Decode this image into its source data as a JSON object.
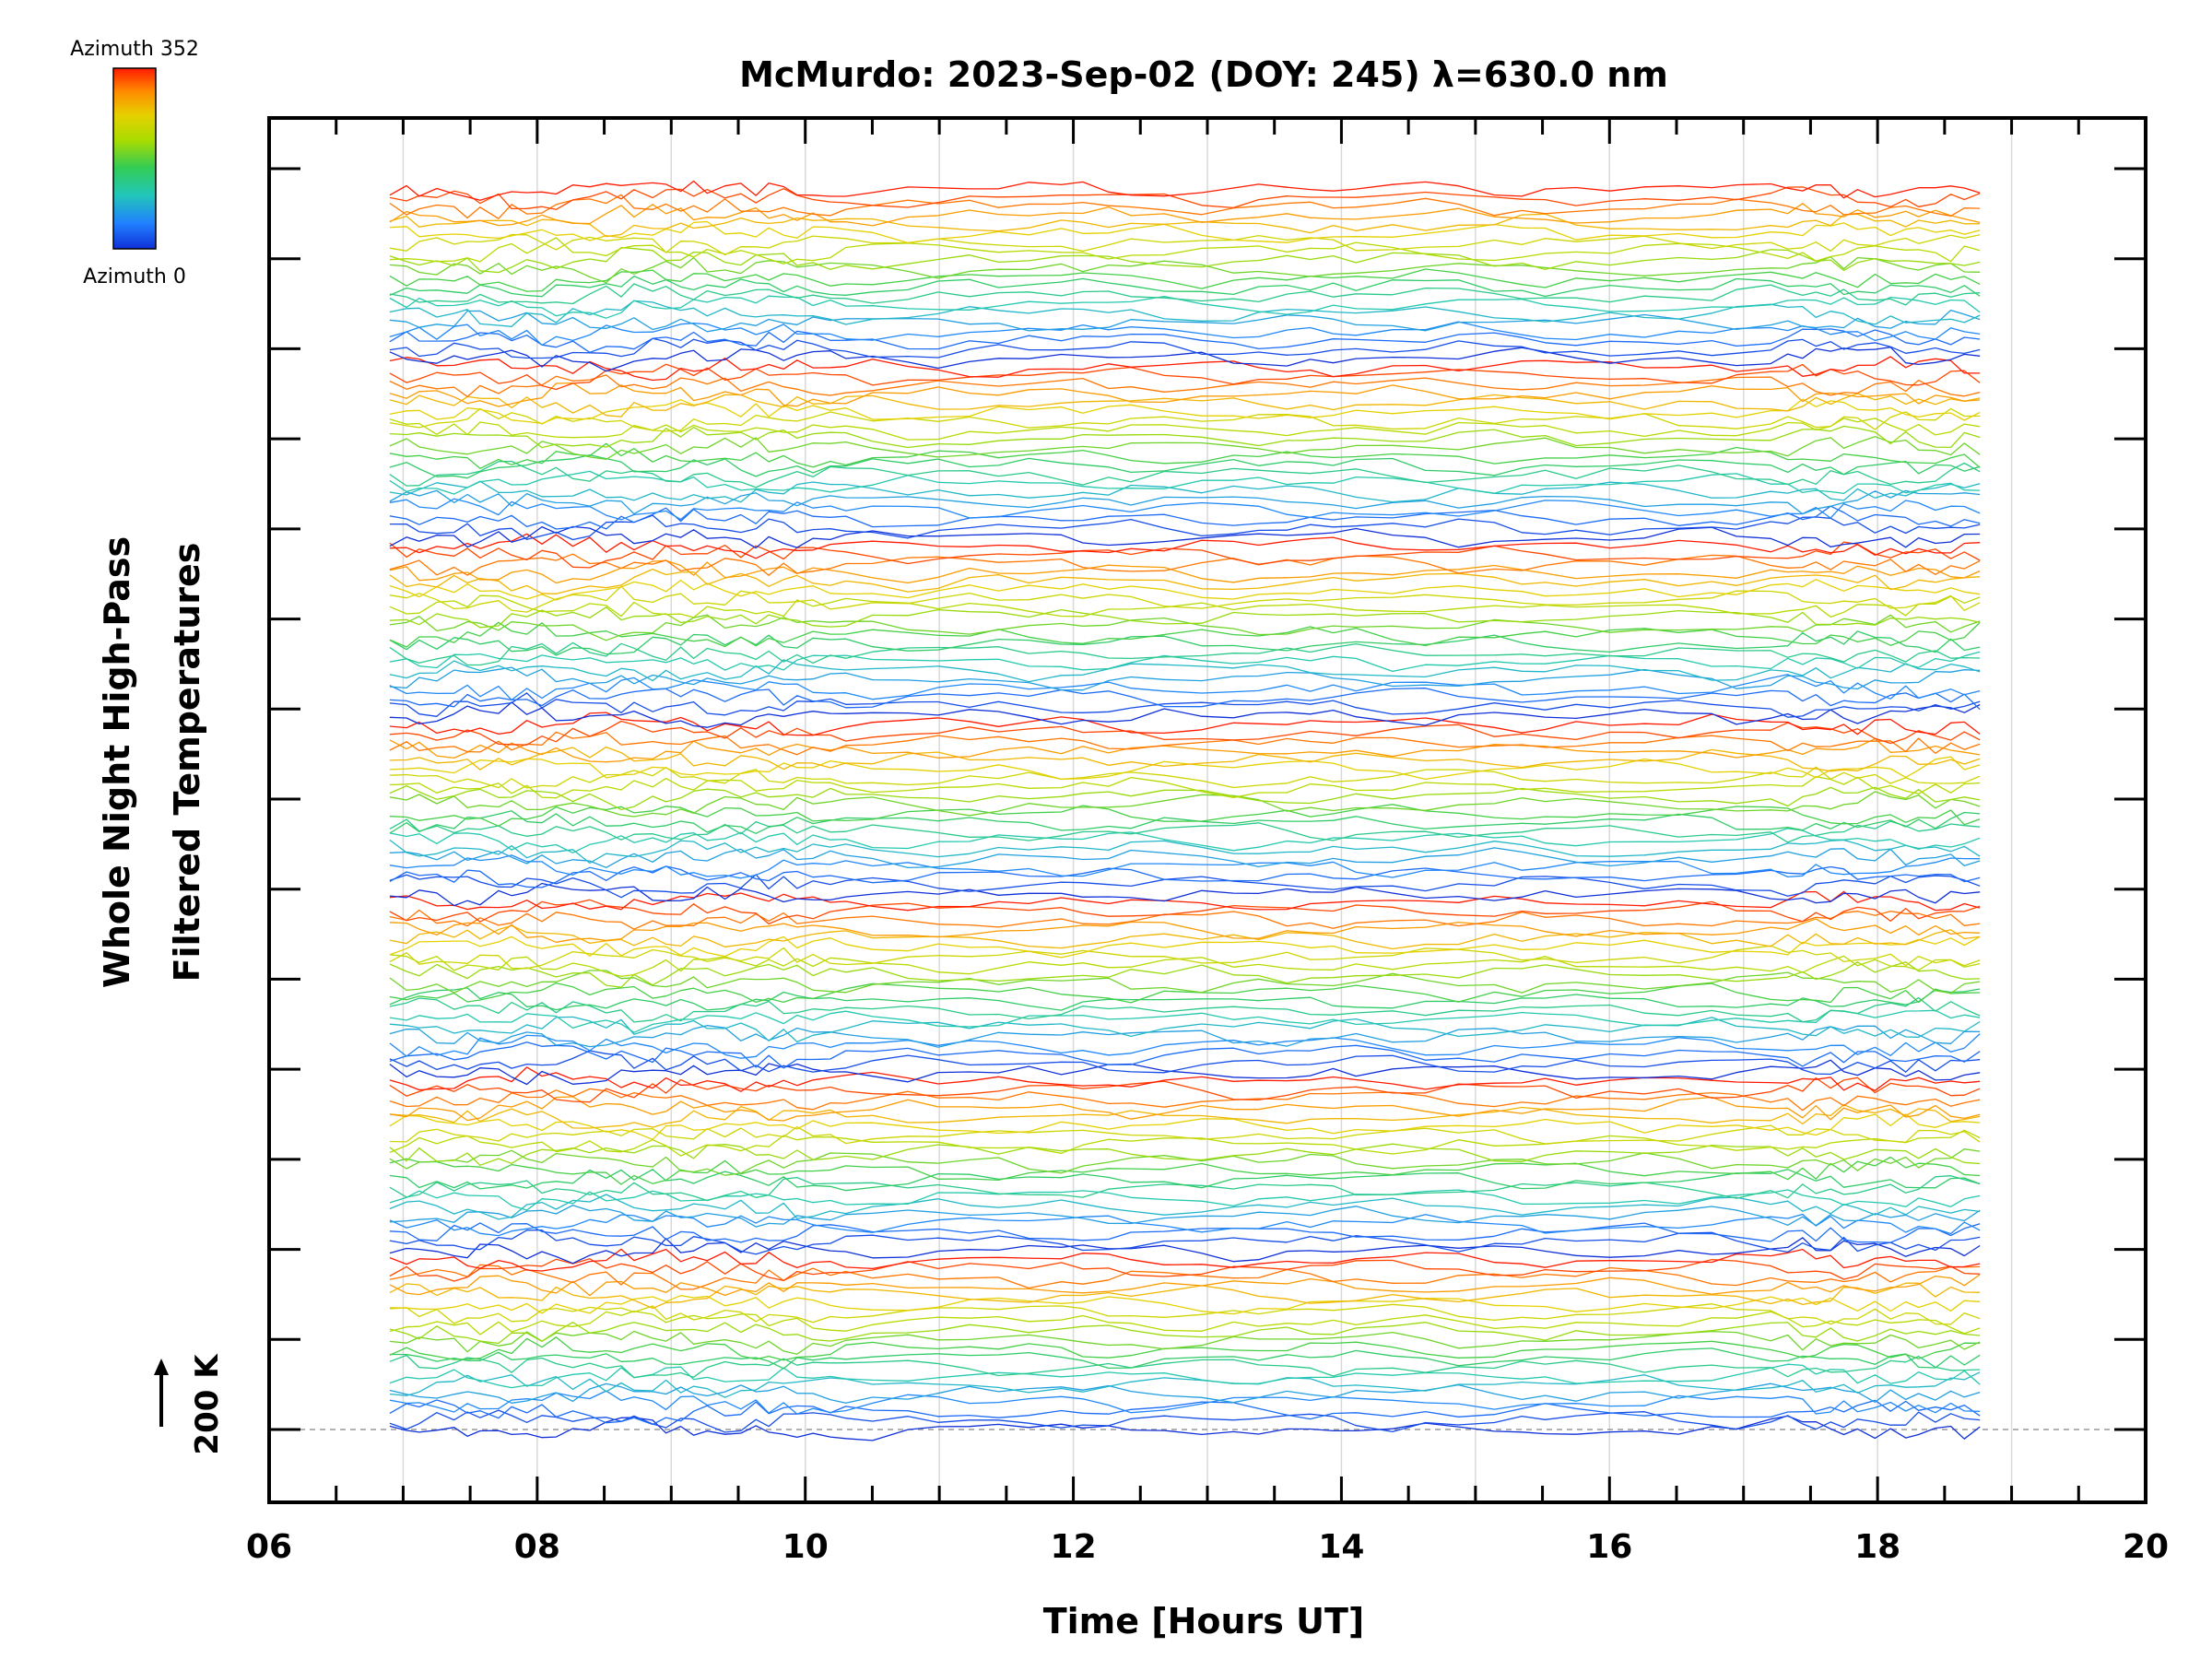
{
  "chart_data": {
    "type": "line",
    "title": "McMurdo: 2023-Sep-02 (DOY: 245) λ=630.0 nm",
    "xlabel": "Time [Hours UT]",
    "ylabel_line1": "Whole Night High-Pass",
    "ylabel_line2": "Filtered Temperatures",
    "xlim": [
      6,
      20
    ],
    "x_tick_labels": [
      "06",
      "08",
      "10",
      "12",
      "14",
      "16",
      "18",
      "20"
    ],
    "x_ticks": [
      6,
      8,
      10,
      12,
      14,
      16,
      18,
      20
    ],
    "x_range_data": [
      6.9,
      18.8
    ],
    "vertical_grid_hours": [
      7,
      8,
      9,
      10,
      11,
      12,
      13,
      14,
      15,
      16,
      17,
      18,
      19
    ],
    "grid": true,
    "colorbar": {
      "top_label": "Azimuth 352",
      "bottom_label": "Azimuth 0",
      "placement": "top-left",
      "colors": [
        "#ff1a00",
        "#ff8c00",
        "#e6d000",
        "#a8dc00",
        "#33cc55",
        "#22c7b8",
        "#2080ff",
        "#1030d8"
      ]
    },
    "scale_label": "200 K",
    "n_groups": 7,
    "curves_per_group": 20,
    "azimuth_min": 0,
    "azimuth_max": 352,
    "baseline_dashed": true,
    "line_width": 1.3
  }
}
